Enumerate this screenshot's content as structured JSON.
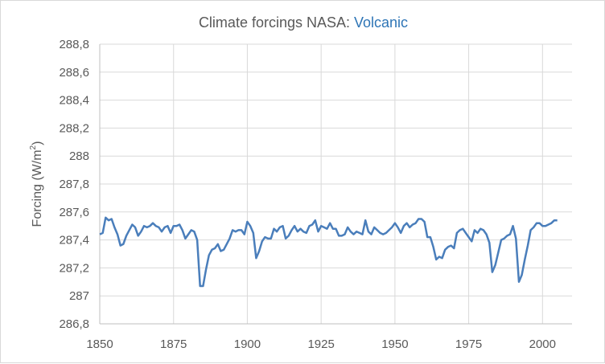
{
  "chart_data": {
    "type": "line",
    "title_prefix": "Climate forcings NASA: ",
    "title_highlight": "Volcanic",
    "ylabel_text": "Forcing (W/m",
    "ylabel_sup": "2",
    "ylabel_close": ")",
    "xlabel": "",
    "xlim": [
      1850,
      2010
    ],
    "ylim": [
      286.8,
      288.8
    ],
    "x_ticks": [
      1850,
      1875,
      1900,
      1925,
      1950,
      1975,
      2000
    ],
    "y_ticks": [
      "286,8",
      "287",
      "287,2",
      "287,4",
      "287,6",
      "287,8",
      "288",
      "288,2",
      "288,4",
      "288,6",
      "288,8"
    ],
    "y_tick_values": [
      286.8,
      287.0,
      287.2,
      287.4,
      287.6,
      287.8,
      288.0,
      288.2,
      288.4,
      288.6,
      288.8
    ],
    "grid": true,
    "legend": "none",
    "series": [
      {
        "color": "#4a7ebb",
        "x": [
          1850,
          1851,
          1852,
          1853,
          1854,
          1855,
          1856,
          1857,
          1858,
          1859,
          1860,
          1861,
          1862,
          1863,
          1864,
          1865,
          1866,
          1867,
          1868,
          1869,
          1870,
          1871,
          1872,
          1873,
          1874,
          1875,
          1876,
          1877,
          1878,
          1879,
          1880,
          1881,
          1882,
          1883,
          1884,
          1885,
          1886,
          1887,
          1888,
          1889,
          1890,
          1891,
          1892,
          1893,
          1894,
          1895,
          1896,
          1897,
          1898,
          1899,
          1900,
          1901,
          1902,
          1903,
          1904,
          1905,
          1906,
          1907,
          1908,
          1909,
          1910,
          1911,
          1912,
          1913,
          1914,
          1915,
          1916,
          1917,
          1918,
          1919,
          1920,
          1921,
          1922,
          1923,
          1924,
          1925,
          1926,
          1927,
          1928,
          1929,
          1930,
          1931,
          1932,
          1933,
          1934,
          1935,
          1936,
          1937,
          1938,
          1939,
          1940,
          1941,
          1942,
          1943,
          1944,
          1945,
          1946,
          1947,
          1948,
          1949,
          1950,
          1951,
          1952,
          1953,
          1954,
          1955,
          1956,
          1957,
          1958,
          1959,
          1960,
          1961,
          1962,
          1963,
          1964,
          1965,
          1966,
          1967,
          1968,
          1969,
          1970,
          1971,
          1972,
          1973,
          1974,
          1975,
          1976,
          1977,
          1978,
          1979,
          1980,
          1981,
          1982,
          1983,
          1984,
          1985,
          1986,
          1987,
          1988,
          1989,
          1990,
          1991,
          1992,
          1993,
          1994,
          1995,
          1996,
          1997,
          1998,
          1999,
          2000,
          2001,
          2002,
          2003,
          2004,
          2005
        ],
        "y": [
          287.44,
          287.45,
          287.56,
          287.54,
          287.55,
          287.49,
          287.44,
          287.36,
          287.37,
          287.43,
          287.47,
          287.51,
          287.49,
          287.43,
          287.46,
          287.5,
          287.49,
          287.5,
          287.52,
          287.5,
          287.49,
          287.46,
          287.49,
          287.5,
          287.45,
          287.5,
          287.5,
          287.51,
          287.47,
          287.41,
          287.44,
          287.47,
          287.46,
          287.4,
          287.07,
          287.07,
          287.19,
          287.29,
          287.33,
          287.34,
          287.37,
          287.32,
          287.33,
          287.37,
          287.41,
          287.47,
          287.46,
          287.47,
          287.47,
          287.44,
          287.53,
          287.5,
          287.45,
          287.27,
          287.32,
          287.39,
          287.42,
          287.41,
          287.41,
          287.48,
          287.46,
          287.49,
          287.5,
          287.41,
          287.43,
          287.47,
          287.5,
          287.46,
          287.48,
          287.46,
          287.45,
          287.5,
          287.51,
          287.54,
          287.46,
          287.5,
          287.49,
          287.48,
          287.52,
          287.48,
          287.48,
          287.43,
          287.43,
          287.44,
          287.49,
          287.46,
          287.44,
          287.46,
          287.45,
          287.44,
          287.54,
          287.46,
          287.44,
          287.49,
          287.47,
          287.45,
          287.44,
          287.45,
          287.47,
          287.49,
          287.52,
          287.49,
          287.45,
          287.5,
          287.52,
          287.49,
          287.51,
          287.52,
          287.55,
          287.55,
          287.53,
          287.42,
          287.42,
          287.35,
          287.26,
          287.28,
          287.27,
          287.33,
          287.35,
          287.36,
          287.34,
          287.45,
          287.47,
          287.48,
          287.45,
          287.42,
          287.39,
          287.47,
          287.45,
          287.48,
          287.47,
          287.44,
          287.38,
          287.17,
          287.22,
          287.31,
          287.4,
          287.41,
          287.43,
          287.44,
          287.5,
          287.41,
          287.1,
          287.15,
          287.26,
          287.36,
          287.47,
          287.49,
          287.52,
          287.52,
          287.5,
          287.5,
          287.51,
          287.52,
          287.54,
          287.54
        ]
      }
    ]
  }
}
